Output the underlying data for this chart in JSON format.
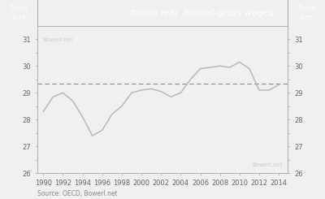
{
  "source": "Source: OECD, Bowerl.net",
  "watermark_top": "Bowerl.net",
  "watermark_bottom": "Bowerl.net",
  "years": [
    1990,
    1991,
    1992,
    1993,
    1994,
    1995,
    1996,
    1997,
    1998,
    1999,
    2000,
    2001,
    2002,
    2003,
    2004,
    2005,
    2006,
    2007,
    2008,
    2009,
    2010,
    2011,
    2012,
    2013,
    2014
  ],
  "values": [
    28.3,
    28.85,
    29.0,
    28.7,
    28.1,
    27.4,
    27.6,
    28.2,
    28.5,
    29.0,
    29.1,
    29.15,
    29.05,
    28.85,
    29.0,
    29.5,
    29.9,
    29.95,
    30.0,
    29.95,
    30.15,
    29.9,
    29.1,
    29.1,
    29.3
  ],
  "dashed_y": 29.35,
  "ylim_bottom": 26.0,
  "ylim_top": 31.5,
  "ytick_positions": [
    26.0,
    26.5,
    27.0,
    27.5,
    28.0,
    28.5,
    29.0,
    29.5,
    30.0,
    30.5,
    31.0
  ],
  "ytick_labels": [
    "26",
    "",
    "27",
    "",
    "28",
    "",
    "29",
    "",
    "30",
    "",
    "31"
  ],
  "xticks": [
    1990,
    1992,
    1994,
    1996,
    1998,
    2000,
    2002,
    2004,
    2006,
    2008,
    2010,
    2012,
    2014
  ],
  "line_color": "#b8b8b8",
  "dashed_color": "#888888",
  "title_bg_color": "#696969",
  "title_text_color": "#ffffff",
  "bg_color": "#f0f0f0",
  "plot_bg_color": "#f0f0f0",
  "axis_color": "#aaaaaa",
  "tick_label_color": "#666666",
  "watermark_color": "#cccccc",
  "source_color": "#888888"
}
